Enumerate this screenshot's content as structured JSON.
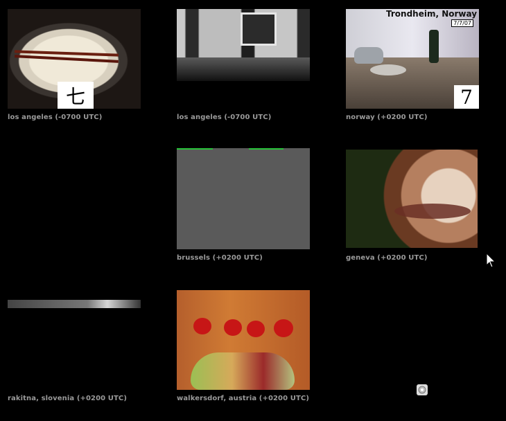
{
  "cams": [
    {
      "caption": "los angeles (-0700 UTC)",
      "badge": "七"
    },
    {
      "caption": "los angeles (-0700 UTC)"
    },
    {
      "caption": "norway (+0200 UTC)",
      "overlay_title": "Trondheim, Norway",
      "overlay_date": "7/7/07",
      "badge": "7"
    },
    {
      "caption": "brussels (+0200 UTC)"
    },
    {
      "caption": "geneva (+0200 UTC)"
    },
    {
      "caption": "rakitna, slovenia (+0200 UTC)"
    },
    {
      "caption": "walkersdorf, austria (+0200 UTC)"
    }
  ],
  "icons": {
    "pointer": "mouse-pointer-icon",
    "bottom": "gear-icon"
  }
}
